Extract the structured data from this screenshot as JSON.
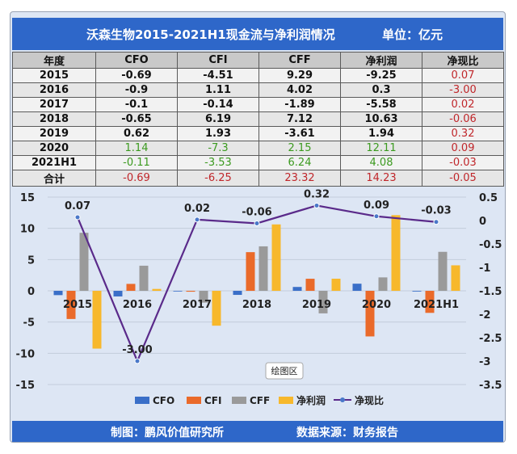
{
  "title": "沃森生物2015-2021H1现金流与净利润情况",
  "unit": "单位：亿元",
  "table": {
    "headers": [
      "年度",
      "CFO",
      "CFI",
      "CFF",
      "净利润",
      "净现比"
    ],
    "rows": [
      {
        "year": "2015",
        "cfo": "-0.69",
        "cfi": "-4.51",
        "cff": "9.29",
        "np": "-9.25",
        "ratio": "0.07"
      },
      {
        "year": "2016",
        "cfo": "-0.9",
        "cfi": "1.11",
        "cff": "4.02",
        "np": "0.3",
        "ratio": "-3.00"
      },
      {
        "year": "2017",
        "cfo": "-0.1",
        "cfi": "-0.14",
        "cff": "-1.89",
        "np": "-5.58",
        "ratio": "0.02"
      },
      {
        "year": "2018",
        "cfo": "-0.65",
        "cfi": "6.19",
        "cff": "7.12",
        "np": "10.63",
        "ratio": "-0.06"
      },
      {
        "year": "2019",
        "cfo": "0.62",
        "cfi": "1.93",
        "cff": "-3.61",
        "np": "1.94",
        "ratio": "0.32"
      },
      {
        "year": "2020",
        "cfo": "1.14",
        "cfi": "-7.3",
        "cff": "2.15",
        "np": "12.11",
        "ratio": "0.09"
      },
      {
        "year": "2021H1",
        "cfo": "-0.11",
        "cfi": "-3.53",
        "cff": "6.24",
        "np": "4.08",
        "ratio": "-0.03"
      },
      {
        "year": "合计",
        "cfo": "-0.69",
        "cfi": "-6.25",
        "cff": "23.32",
        "np": "14.23",
        "ratio": "-0.05"
      }
    ]
  },
  "chart_data": {
    "type": "bar",
    "categories": [
      "2015",
      "2016",
      "2017",
      "2018",
      "2019",
      "2020",
      "2021H1"
    ],
    "series": [
      {
        "name": "CFO",
        "type": "bar",
        "color": "#3a6fc8",
        "values": [
          -0.69,
          -0.9,
          -0.1,
          -0.65,
          0.62,
          1.14,
          -0.11
        ]
      },
      {
        "name": "CFI",
        "type": "bar",
        "color": "#ea6a2a",
        "values": [
          -4.51,
          1.11,
          -0.14,
          6.19,
          1.93,
          -7.3,
          -3.53
        ]
      },
      {
        "name": "CFF",
        "type": "bar",
        "color": "#9a9a9a",
        "values": [
          9.29,
          4.02,
          -1.89,
          7.12,
          -3.61,
          2.15,
          6.24
        ]
      },
      {
        "name": "净利润",
        "type": "bar",
        "color": "#f7b82c",
        "values": [
          -9.25,
          0.3,
          -5.58,
          10.63,
          1.94,
          12.11,
          4.08
        ]
      },
      {
        "name": "净现比",
        "type": "line",
        "axis": "right",
        "color": "#5a2a8a",
        "values": [
          0.07,
          -3.0,
          0.02,
          -0.06,
          0.32,
          0.09,
          -0.03
        ]
      }
    ],
    "line_labels": [
      "0.07",
      "-3.00",
      "0.02",
      "-0.06",
      "0.32",
      "0.09",
      "-0.03"
    ],
    "ylim_left": [
      -15,
      15
    ],
    "yticks_left": [
      "15",
      "10",
      "5",
      "0",
      "-5",
      "-10",
      "-15"
    ],
    "ylim_right": [
      -3.5,
      0.5
    ],
    "yticks_right": [
      "0.5",
      "0",
      "-0.5",
      "-1",
      "-1.5",
      "-2",
      "-2.5",
      "-3",
      "-3.5"
    ],
    "legend": [
      "CFO",
      "CFI",
      "CFF",
      "净利润",
      "净现比"
    ],
    "legend_position": "bottom",
    "annotation": "绘图区"
  },
  "footer": {
    "maker": "制图：鹏风价值研究所",
    "source": "数据来源：财务报告"
  }
}
